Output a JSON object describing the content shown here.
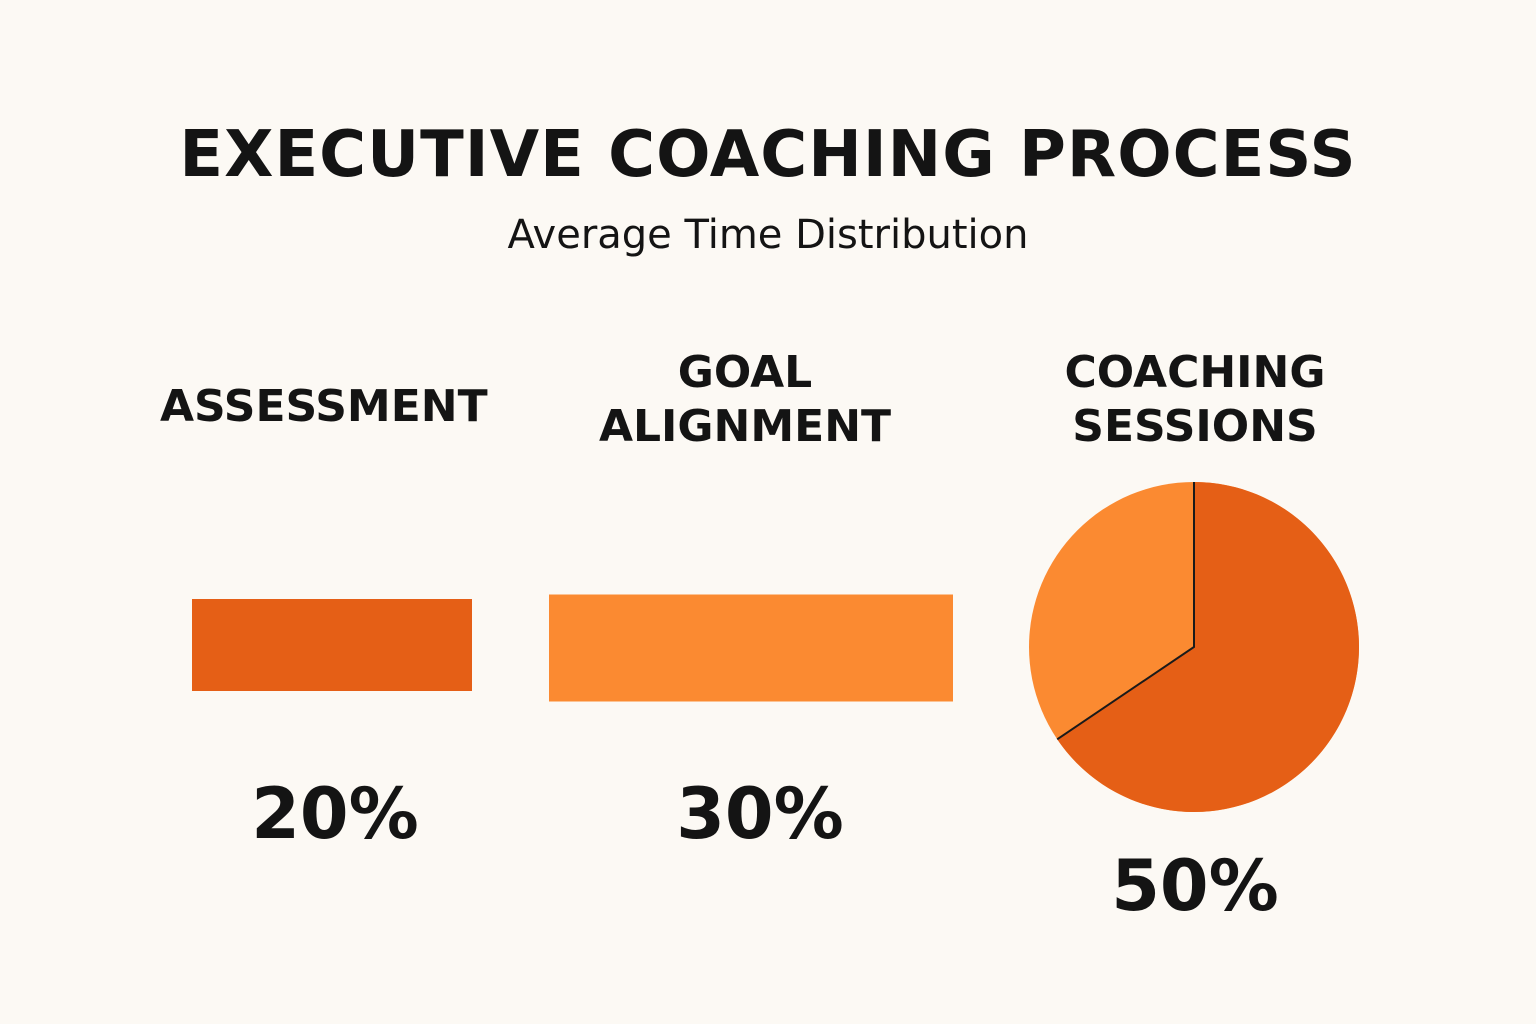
{
  "chart_data": {
    "type": "bar",
    "title": "EXECUTIVE COACHING PROCESS",
    "subtitle": "Average Time Distribution",
    "categories": [
      {
        "label_lines": [
          "ASSESSMENT"
        ],
        "value": 20,
        "display": "20%",
        "mark": "bar",
        "color": "#e55f16"
      },
      {
        "label_lines": [
          "GOAL",
          "ALIGNMENT"
        ],
        "value": 30,
        "display": "30%",
        "mark": "bar",
        "color": "#fb8a31"
      },
      {
        "label_lines": [
          "COACHING",
          "SESSIONS"
        ],
        "value": 50,
        "display": "50%",
        "mark": "pie",
        "color": "#e55f16",
        "secondary_color": "#fb8a31"
      }
    ],
    "unit": "%",
    "xlabel": "",
    "ylabel": "",
    "grid": false,
    "legend": "none"
  }
}
